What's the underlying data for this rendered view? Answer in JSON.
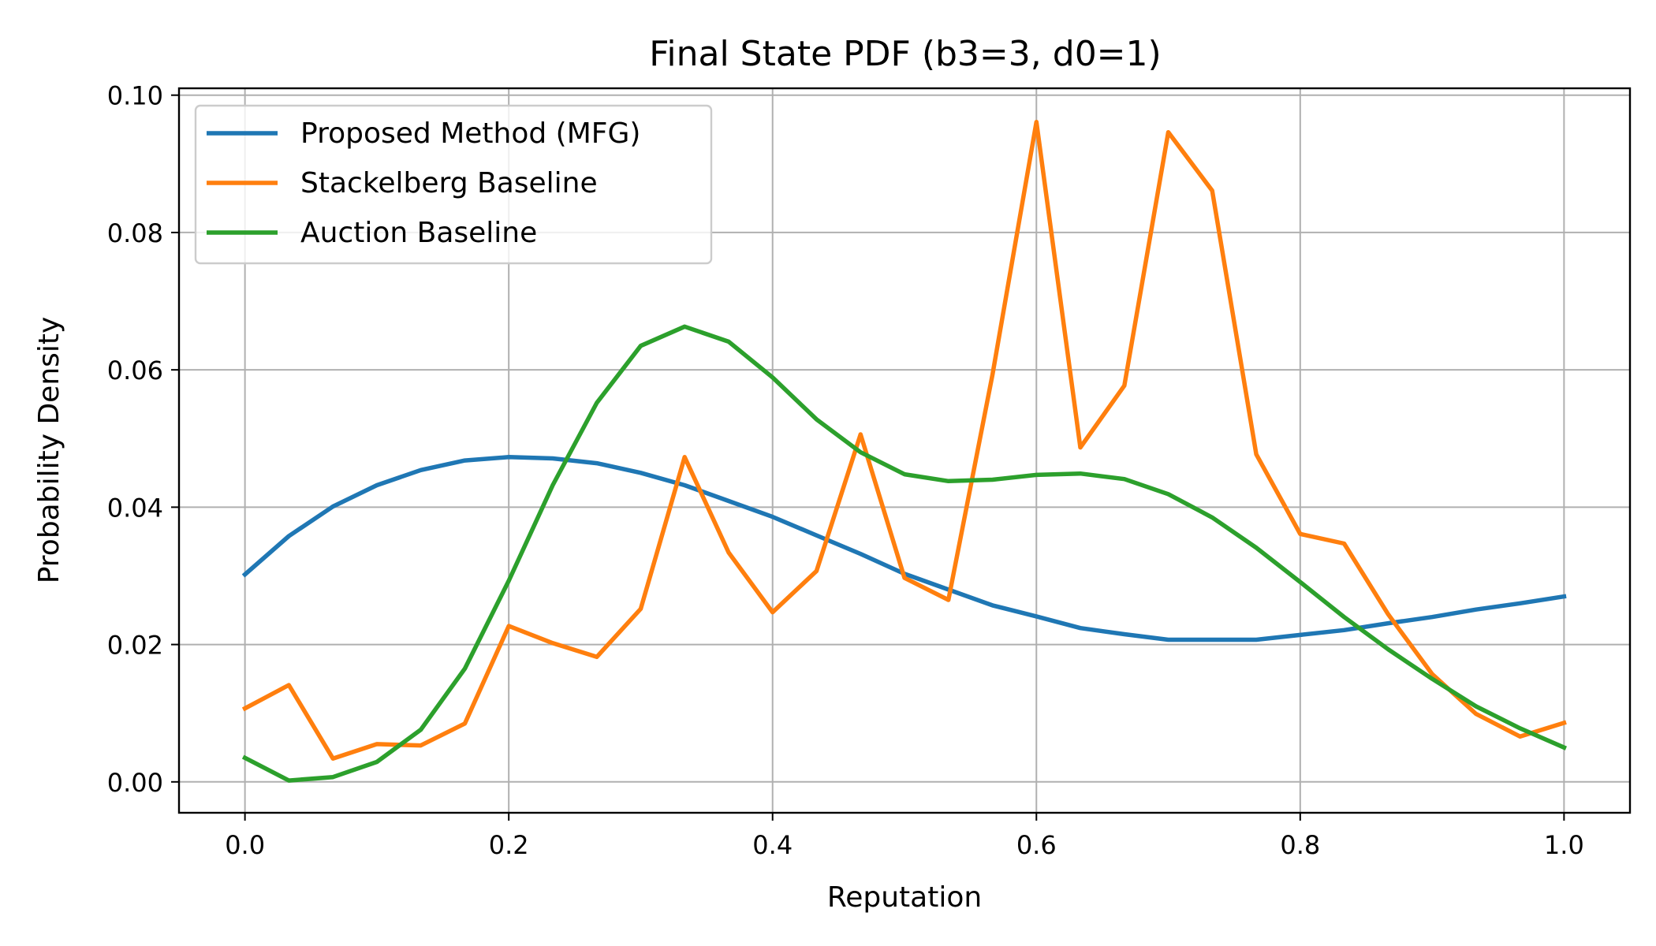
{
  "chart_data": {
    "type": "line",
    "title": "Final State PDF (b3=3, d0=1)",
    "xlabel": "Reputation",
    "ylabel": "Probability Density",
    "xlim": [
      -0.05,
      1.05
    ],
    "ylim": [
      -0.0045,
      0.101
    ],
    "xticks": [
      0.0,
      0.2,
      0.4,
      0.6,
      0.8,
      1.0
    ],
    "xtick_labels": [
      "0.0",
      "0.2",
      "0.4",
      "0.6",
      "0.8",
      "1.0"
    ],
    "yticks": [
      0.0,
      0.02,
      0.04,
      0.06,
      0.08,
      0.1
    ],
    "ytick_labels": [
      "0.00",
      "0.02",
      "0.04",
      "0.06",
      "0.08",
      "0.10"
    ],
    "grid": true,
    "legend_position": "top-left",
    "x": [
      0.0,
      0.0333,
      0.0667,
      0.1,
      0.1333,
      0.1667,
      0.2,
      0.2333,
      0.2667,
      0.3,
      0.3333,
      0.3667,
      0.4,
      0.4333,
      0.4667,
      0.5,
      0.5333,
      0.5667,
      0.6,
      0.6333,
      0.6667,
      0.7,
      0.7333,
      0.7667,
      0.8,
      0.8333,
      0.8667,
      0.9,
      0.9333,
      0.9667,
      1.0
    ],
    "series": [
      {
        "name": "Proposed Method (MFG)",
        "color": "#1f77b4",
        "values": [
          0.0302,
          0.0358,
          0.0401,
          0.0432,
          0.0454,
          0.0468,
          0.0473,
          0.0471,
          0.0464,
          0.045,
          0.0432,
          0.0409,
          0.0386,
          0.0359,
          0.0332,
          0.0303,
          0.028,
          0.0257,
          0.0241,
          0.0224,
          0.0215,
          0.0207,
          0.0207,
          0.0207,
          0.0214,
          0.0221,
          0.0231,
          0.024,
          0.0251,
          0.026,
          0.027
        ]
      },
      {
        "name": "Stackelberg Baseline",
        "color": "#ff7f0e",
        "values": [
          0.0107,
          0.0141,
          0.0034,
          0.0055,
          0.0053,
          0.0085,
          0.0227,
          0.0202,
          0.0182,
          0.0252,
          0.0473,
          0.0334,
          0.0247,
          0.0307,
          0.0506,
          0.0297,
          0.0265,
          0.0593,
          0.0961,
          0.0487,
          0.0577,
          0.0946,
          0.0861,
          0.0477,
          0.0361,
          0.0347,
          0.0244,
          0.0157,
          0.0099,
          0.0066,
          0.0086
        ]
      },
      {
        "name": "Auction Baseline",
        "color": "#2ca02c",
        "values": [
          0.0035,
          0.0002,
          0.0007,
          0.0029,
          0.0076,
          0.0165,
          0.0293,
          0.0432,
          0.0552,
          0.0635,
          0.0663,
          0.0641,
          0.0589,
          0.0528,
          0.048,
          0.0448,
          0.0438,
          0.044,
          0.0447,
          0.0449,
          0.0441,
          0.0419,
          0.0385,
          0.0341,
          0.0291,
          0.024,
          0.0193,
          0.015,
          0.011,
          0.0078,
          0.005
        ]
      }
    ]
  }
}
